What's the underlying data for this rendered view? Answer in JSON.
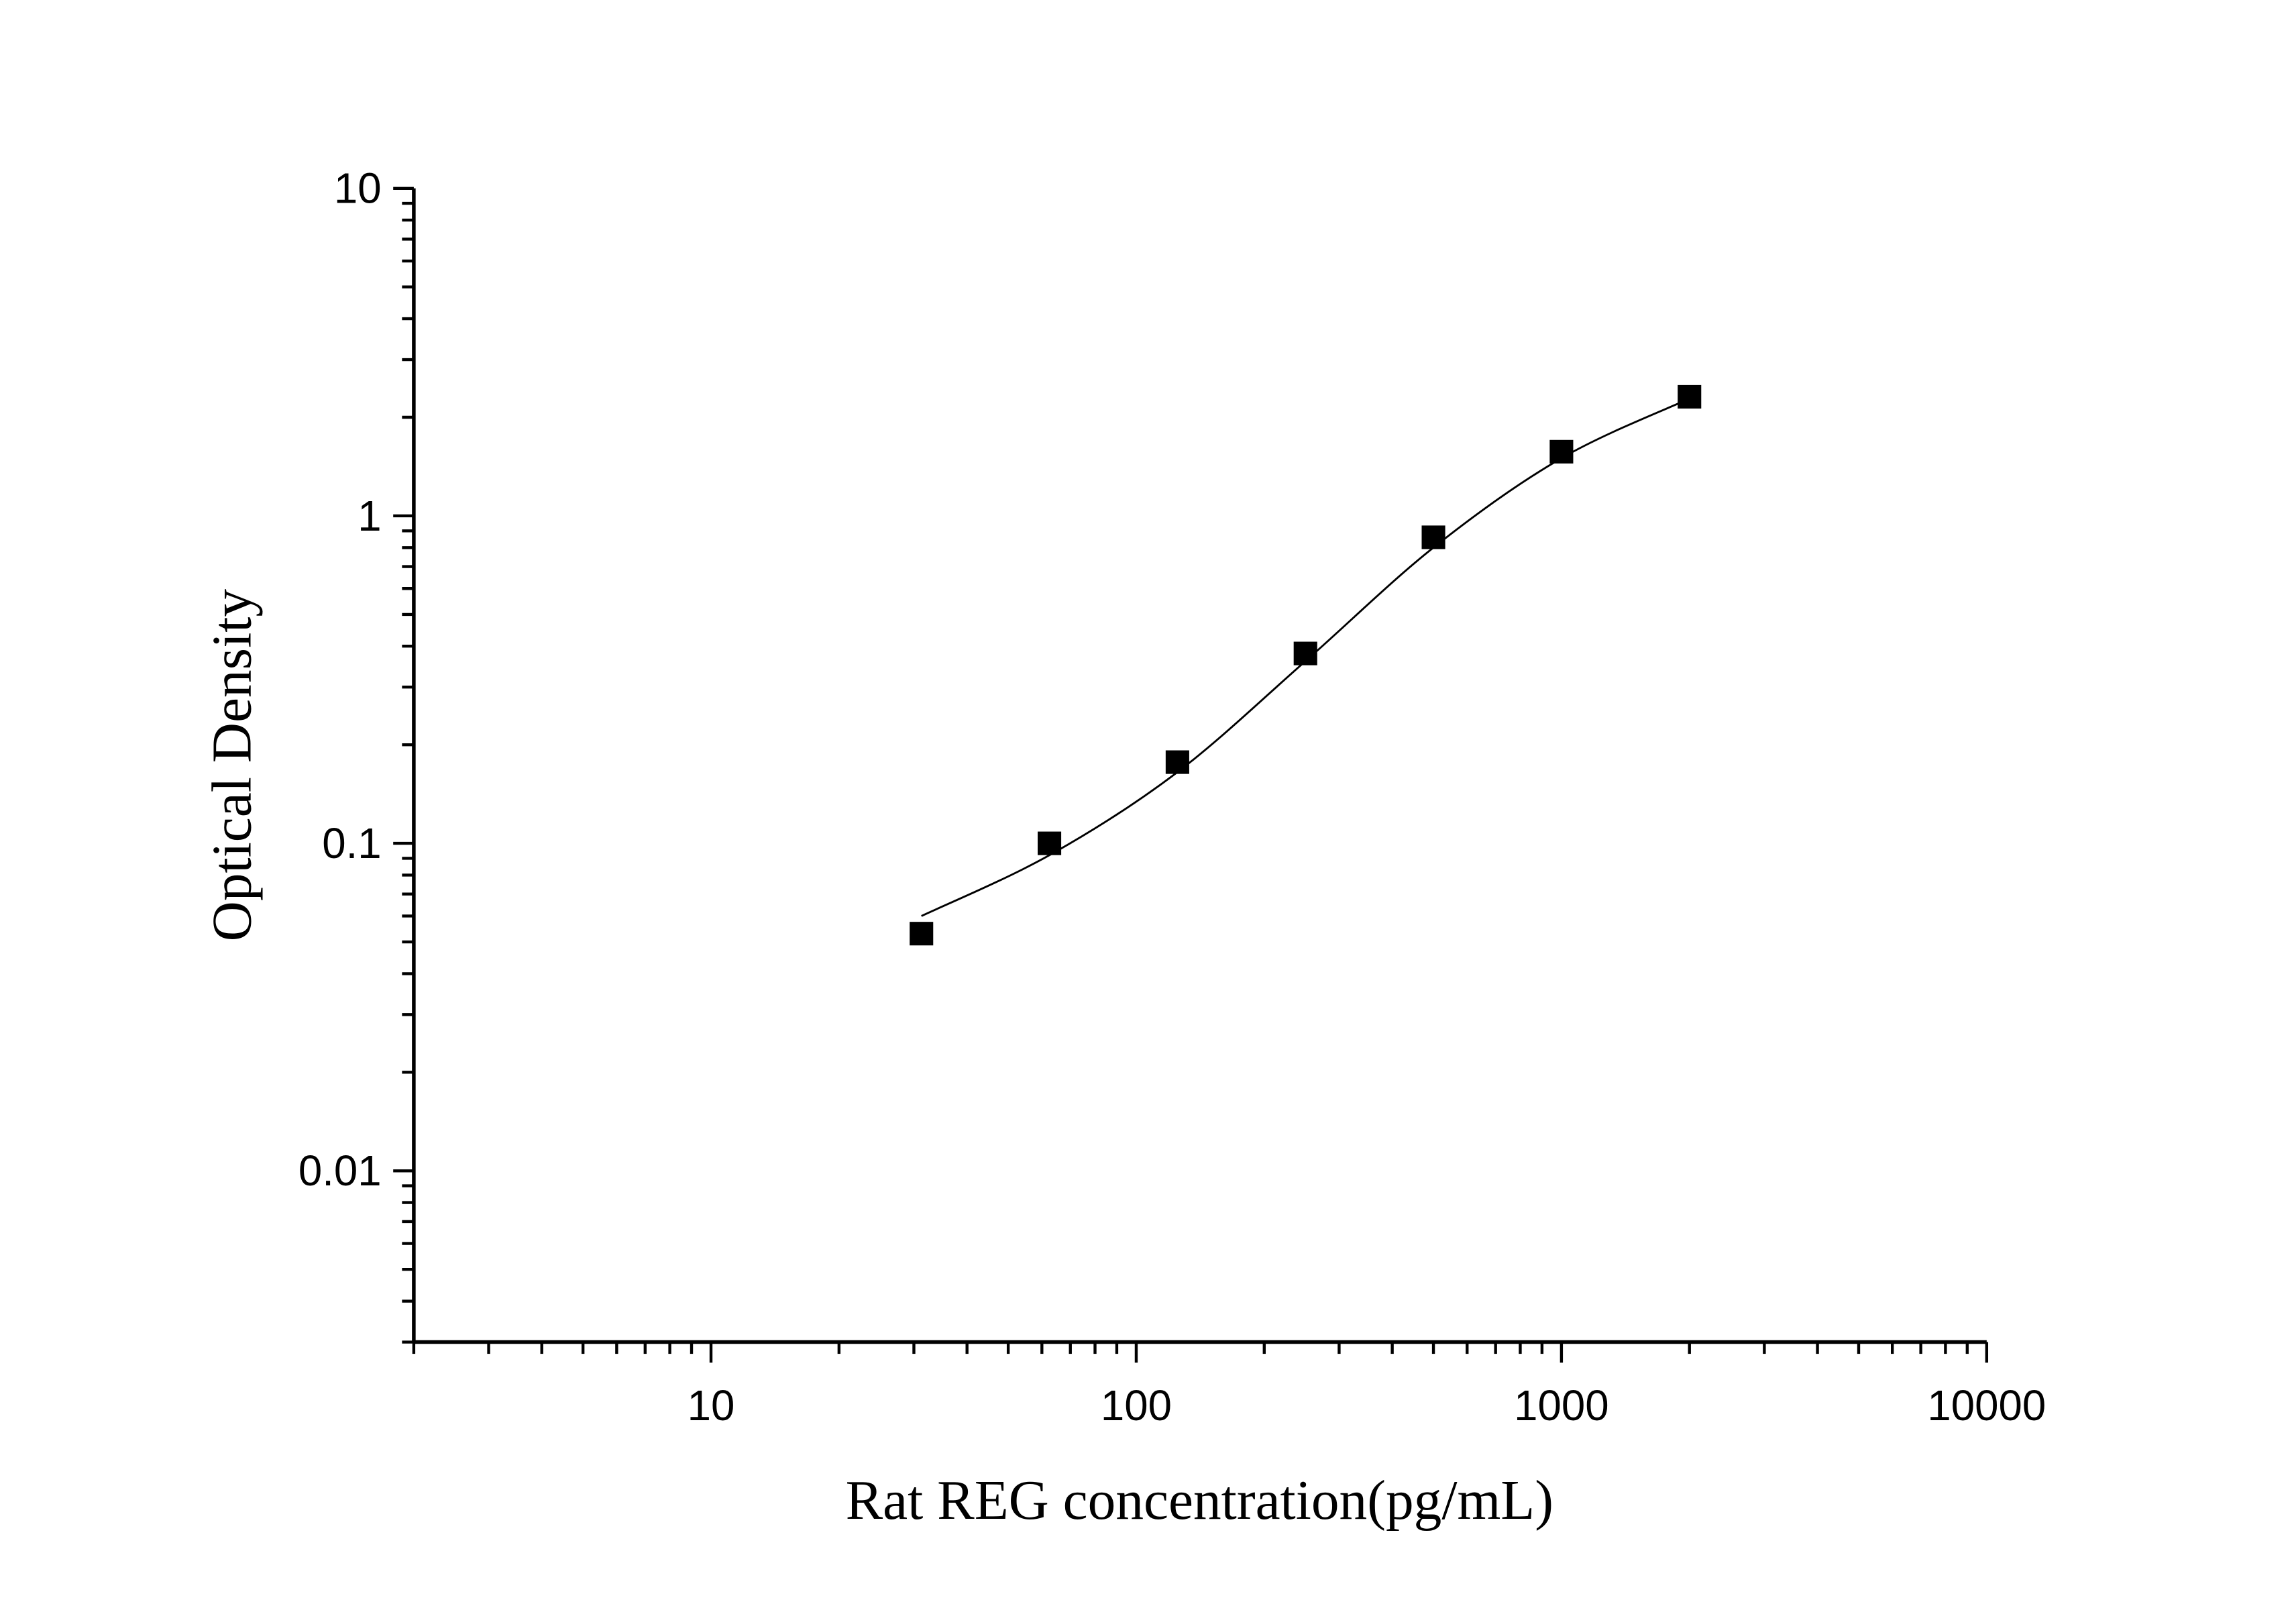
{
  "chart_data": {
    "type": "scatter",
    "title": "",
    "xlabel": "Rat REG concentration(pg/mL)",
    "ylabel": "Optical Density",
    "x_scale": "log",
    "y_scale": "log",
    "xlim": [
      2,
      10000
    ],
    "ylim": [
      0.003,
      10
    ],
    "x_ticks": [
      10,
      100,
      1000,
      10000
    ],
    "x_tick_labels": [
      "10",
      "100",
      "1000",
      "10000"
    ],
    "y_ticks": [
      0.01,
      0.1,
      1,
      10
    ],
    "y_tick_labels": [
      "0.01",
      "0.1",
      "1",
      "10"
    ],
    "grid": false,
    "legend": "none",
    "marker_color": "#000000",
    "series": [
      {
        "x": [
          31.25,
          62.5,
          125,
          250,
          500,
          1000,
          2000
        ],
        "y": [
          0.053,
          0.1,
          0.177,
          0.38,
          0.86,
          1.57,
          2.31
        ],
        "marker": "square"
      }
    ],
    "fit_curve": {
      "x": [
        31.25,
        62.5,
        125,
        250,
        500,
        1000,
        2000
      ],
      "y": [
        0.06,
        0.092,
        0.165,
        0.36,
        0.8,
        1.5,
        2.28
      ]
    }
  }
}
